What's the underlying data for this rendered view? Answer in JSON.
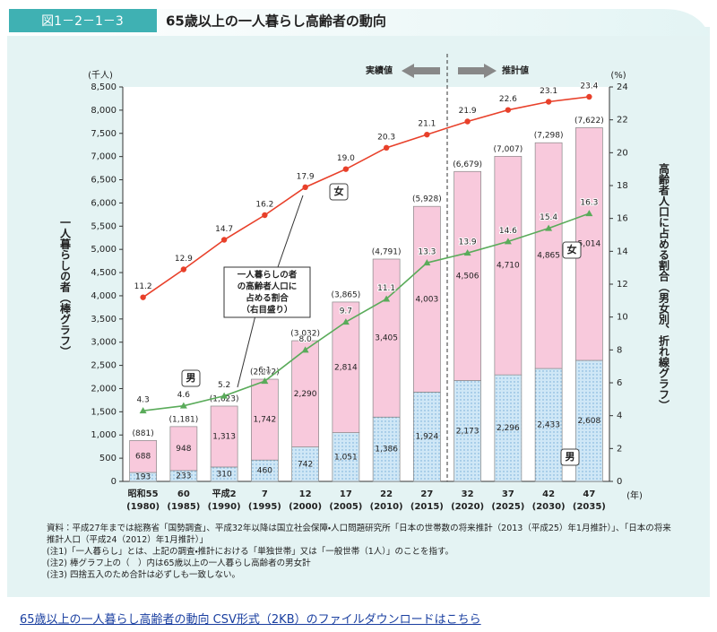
{
  "header": {
    "figure_no": "図1－2－1－3",
    "title": "65歳以上の一人暮らし高齢者の動向"
  },
  "chart_data": {
    "type": "bar",
    "categories": [
      "昭和55",
      "60",
      "平成2",
      "7",
      "12",
      "17",
      "22",
      "27",
      "32",
      "37",
      "42",
      "47"
    ],
    "year_labels": [
      "(1980)",
      "(1985)",
      "(1990)",
      "(1995)",
      "(2000)",
      "(2005)",
      "(2010)",
      "(2015)",
      "(2020)",
      "(2025)",
      "(2030)",
      "(2035)"
    ],
    "series": [
      {
        "name": "男",
        "color": "#cfe7f6",
        "values": [
          193,
          233,
          310,
          460,
          742,
          1051,
          1386,
          1924,
          2173,
          2296,
          2433,
          2608
        ],
        "value_labels": [
          "193",
          "233",
          "310",
          "460",
          "742",
          "1,051",
          "1,386",
          "1,924",
          "2,173",
          "2,296",
          "2,433",
          "2,608"
        ]
      },
      {
        "name": "女",
        "color": "#f8c9dc",
        "values": [
          688,
          948,
          1313,
          1742,
          2290,
          2814,
          3405,
          4003,
          4506,
          4710,
          4865,
          5014
        ],
        "value_labels": [
          "688",
          "948",
          "1,313",
          "1,742",
          "2,290",
          "2,814",
          "3,405",
          "4,003",
          "4,506",
          "4,710",
          "4,865",
          "5,014"
        ]
      }
    ],
    "totals": [
      881,
      1181,
      1623,
      2202,
      3032,
      3865,
      4791,
      5928,
      6679,
      7007,
      7298,
      7622
    ],
    "total_labels": [
      "(881)",
      "(1,181)",
      "(1,623)",
      "(2,202)",
      "(3,032)",
      "(3,865)",
      "(4,791)",
      "(5,928)",
      "(6,679)",
      "(7,007)",
      "(7,298)",
      "(7,622)"
    ],
    "lines": [
      {
        "name": "女",
        "color": "#e8402a",
        "axis": "y2",
        "values": [
          11.2,
          12.9,
          14.7,
          16.2,
          17.9,
          19.0,
          20.3,
          21.1,
          21.9,
          22.6,
          23.1,
          23.4
        ],
        "value_labels": [
          "11.2",
          "12.9",
          "14.7",
          "16.2",
          "17.9",
          "19.0",
          "20.3",
          "21.1",
          "21.9",
          "22.6",
          "23.1",
          "23.4"
        ]
      },
      {
        "name": "男",
        "color": "#5aab5a",
        "axis": "y2",
        "values": [
          4.3,
          4.6,
          5.2,
          6.1,
          8.0,
          9.7,
          11.1,
          13.3,
          13.9,
          14.6,
          15.4,
          16.3
        ],
        "value_labels": [
          "4.3",
          "4.6",
          "5.2",
          "6.1",
          "8.0",
          "9.7",
          "11.1",
          "13.3",
          "13.9",
          "14.6",
          "15.4",
          "16.3"
        ]
      }
    ],
    "ylim": [
      0,
      8500
    ],
    "yticks": [
      0,
      500,
      {
        "value": 1000,
        "label": "1,000"
      },
      {
        "value": 1500,
        "label": "1,500"
      },
      {
        "value": 2000,
        "label": "2,000"
      },
      {
        "value": 2500,
        "label": "2,500"
      },
      {
        "value": 3000,
        "label": "3,000"
      },
      {
        "value": 3500,
        "label": "3,500"
      },
      {
        "value": 4000,
        "label": "4,000"
      },
      {
        "value": 4500,
        "label": "4,500"
      },
      {
        "value": 5000,
        "label": "5,000"
      },
      {
        "value": 5500,
        "label": "5,500"
      },
      {
        "value": 6000,
        "label": "6,000"
      },
      {
        "value": 6500,
        "label": "6,500"
      },
      {
        "value": 7000,
        "label": "7,000"
      },
      {
        "value": 7500,
        "label": "7,500"
      },
      {
        "value": 8000,
        "label": "8,000"
      },
      {
        "value": 8500,
        "label": "8,500"
      }
    ],
    "y2lim": [
      0,
      24
    ],
    "y2ticks": [
      0,
      2,
      4,
      6,
      8,
      10,
      12,
      14,
      16,
      18,
      20,
      22,
      24
    ],
    "y_unit": "(千人)",
    "y2_unit": "(%)",
    "x_unit": "(年)",
    "ylabel": "一人暮らしの者（棒グラフ）",
    "y2label": "高齢者人口に占める割合（男女別、折れ線グラフ）",
    "annotations": {
      "actual": "実績値",
      "projected": "推計値",
      "callout": [
        "一人暮らしの者",
        "の高齢者人口に",
        "占める割合",
        "（右目盛り）"
      ]
    }
  },
  "notes": [
    "資料：平成27年までは総務省「国勢調査」、平成32年以降は国立社会保障・人口問題研究所「日本の世帯数の将来推計（2013（平成25）年1月推計）」、「日本の将来推計人口（平成24（2012）年1月推計）」",
    "(注1)「一人暮らし」とは、上記の調査・推計における「単独世帯」又は「一般世帯（1人）」のことを指す。",
    "(注2) 棒グラフ上の（　）内は65歳以上の一人暮らし高齢者の男女計",
    "(注3) 四捨五入のため合計は必ずしも一致しない。"
  ],
  "link": "65歳以上の一人暮らし高齢者の動向 CSV形式（2KB）のファイルダウンロードはこちら"
}
